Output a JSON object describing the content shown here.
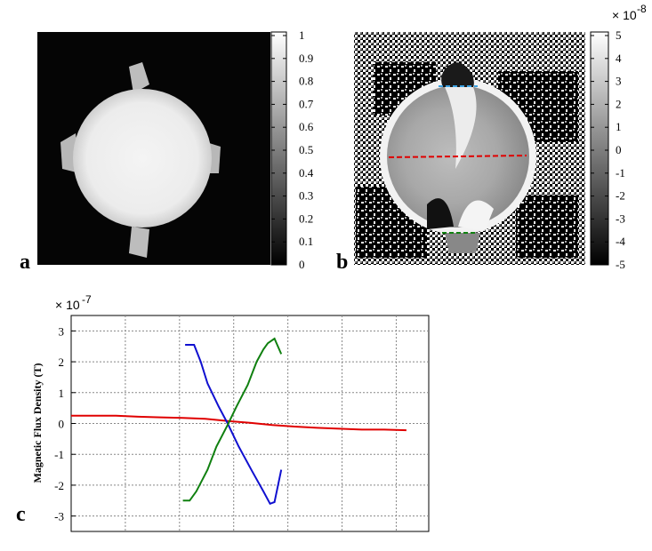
{
  "panels": {
    "a": "a",
    "b": "b",
    "c": "c"
  },
  "colorbar_a": {
    "ticks": [
      "1",
      "0.9",
      "0.8",
      "0.7",
      "0.6",
      "0.5",
      "0.4",
      "0.3",
      "0.2",
      "0.1",
      "0"
    ],
    "values": [
      1,
      0.9,
      0.8,
      0.7,
      0.6,
      0.5,
      0.4,
      0.3,
      0.2,
      0.1,
      0
    ]
  },
  "colorbar_b": {
    "multiplier_base": "× 10",
    "multiplier_exp": "-8",
    "ticks": [
      "5",
      "4",
      "3",
      "2",
      "1",
      "0",
      "-1",
      "-2",
      "-3",
      "-4",
      "-5"
    ],
    "values": [
      5,
      4,
      3,
      2,
      1,
      0,
      -1,
      -2,
      -3,
      -4,
      -5
    ]
  },
  "colors": {
    "red_profile": "#e00000",
    "blue_profile": "#1010d0",
    "green_profile": "#108010",
    "cyan_line": "#3aa0e0"
  },
  "chart_data": {
    "type": "line",
    "title": "",
    "ylabel": "Magnetic Flux Density (T)",
    "xlabel": "",
    "multiplier_base": "× 10",
    "multiplier_exp": "-7",
    "ylim": [
      -3.5,
      3.5
    ],
    "yticks": [
      3,
      2,
      1,
      0,
      -1,
      -2,
      -3
    ],
    "ytick_labels": [
      "3",
      "2",
      "1",
      "0",
      "-1",
      "-2",
      "-3"
    ],
    "xlim": [
      0,
      8
    ],
    "grid": true,
    "series": [
      {
        "color": "#e00000",
        "x": [
          0,
          0.5,
          1,
          1.5,
          2,
          2.5,
          3,
          3.5,
          4,
          4.5,
          5,
          5.5,
          6,
          6.5,
          7,
          7.5
        ],
        "y": [
          0.25,
          0.25,
          0.25,
          0.22,
          0.2,
          0.18,
          0.15,
          0.08,
          0.02,
          -0.05,
          -0.1,
          -0.14,
          -0.17,
          -0.2,
          -0.2,
          -0.22
        ]
      },
      {
        "color": "#1010d0",
        "x": [
          2.55,
          2.75,
          2.9,
          3.05,
          3.3,
          3.5,
          3.75,
          4.05,
          4.3,
          4.45,
          4.55,
          4.7
        ],
        "y": [
          2.55,
          2.55,
          2.0,
          1.3,
          0.55,
          0.0,
          -0.75,
          -1.55,
          -2.2,
          -2.6,
          -2.55,
          -1.5
        ]
      },
      {
        "color": "#108010",
        "x": [
          2.5,
          2.65,
          2.8,
          3.05,
          3.25,
          3.5,
          3.7,
          3.95,
          4.15,
          4.3,
          4.4,
          4.55,
          4.7
        ],
        "y": [
          -2.5,
          -2.5,
          -2.2,
          -1.5,
          -0.75,
          -0.05,
          0.55,
          1.25,
          2.0,
          2.4,
          2.6,
          2.75,
          2.25
        ]
      }
    ]
  }
}
